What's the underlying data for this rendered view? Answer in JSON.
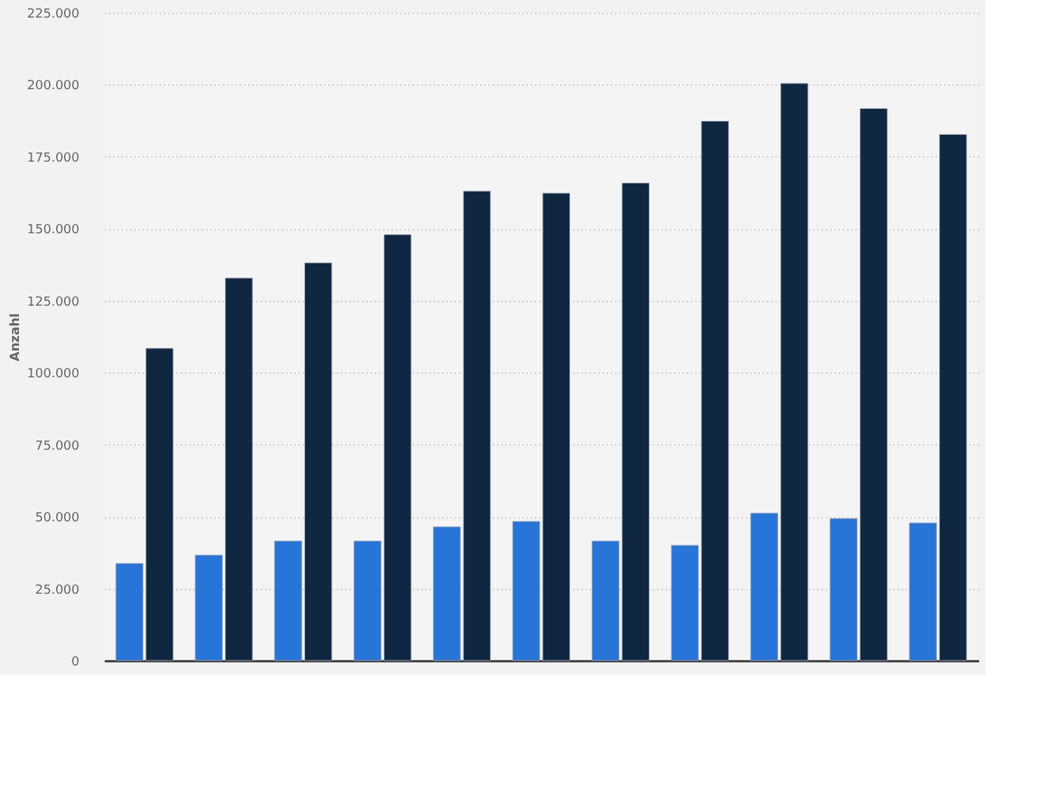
{
  "chart_data": {
    "type": "bar",
    "ylabel": "Anzahl",
    "categories": [
      null,
      null,
      null,
      null,
      null,
      null,
      null,
      null,
      null,
      null,
      null
    ],
    "series": [
      {
        "color": "#2875d9",
        "values": [
          33700,
          36600,
          41500,
          41500,
          46400,
          48300,
          41500,
          40000,
          51200,
          49300,
          47800
        ]
      },
      {
        "color": "#0f2740",
        "values": [
          108400,
          132800,
          138100,
          147900,
          163000,
          162300,
          165800,
          187300,
          200400,
          191700,
          182700
        ]
      }
    ],
    "ylim": [
      0,
      225000
    ],
    "yticks": [
      {
        "value": 0,
        "label": "0"
      },
      {
        "value": 25000,
        "label": "25.000"
      },
      {
        "value": 50000,
        "label": "50.000"
      },
      {
        "value": 75000,
        "label": "75.000"
      },
      {
        "value": 100000,
        "label": "100.000"
      },
      {
        "value": 125000,
        "label": "125.000"
      },
      {
        "value": 150000,
        "label": "150.000"
      },
      {
        "value": 175000,
        "label": "175.000"
      },
      {
        "value": 200000,
        "label": "200.000"
      },
      {
        "value": 225000,
        "label": "225.000"
      }
    ],
    "grid": "y",
    "legend": false
  }
}
